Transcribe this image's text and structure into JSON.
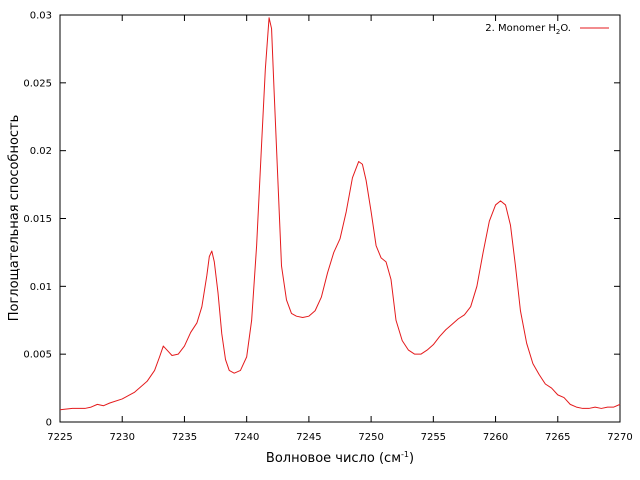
{
  "chart_data": {
    "type": "line",
    "xlabel": "Волновое число (см",
    "xlabel_sup": "-1",
    "xlabel_end": ")",
    "ylabel": "Поглощательная способность",
    "xlim": [
      7225,
      7270
    ],
    "ylim": [
      0,
      0.03
    ],
    "xticks": [
      "7225",
      "7230",
      "7235",
      "7240",
      "7245",
      "7250",
      "7255",
      "7260",
      "7265",
      "7270"
    ],
    "yticks": [
      "0",
      "0.005",
      "0.01",
      "0.015",
      "0.02",
      "0.025",
      "0.03"
    ],
    "grid": false,
    "legend_position": "top-right",
    "series": [
      {
        "name": "2. Monomer H",
        "name_sub": "2",
        "name_end": "O.",
        "color": "#e41a1c",
        "x": [
          7225,
          7226,
          7227,
          7227.5,
          7228,
          7228.5,
          7229,
          7230,
          7231,
          7232,
          7232.6,
          7233,
          7233.3,
          7233.7,
          7234,
          7234.5,
          7235,
          7235.5,
          7236,
          7236.4,
          7236.8,
          7237,
          7237.2,
          7237.4,
          7237.7,
          7238,
          7238.3,
          7238.6,
          7239,
          7239.5,
          7240,
          7240.4,
          7240.8,
          7241.2,
          7241.5,
          7241.8,
          7242,
          7242.2,
          7242.5,
          7242.8,
          7243.2,
          7243.6,
          7244,
          7244.5,
          7245,
          7245.5,
          7246,
          7246.5,
          7247,
          7247.5,
          7248,
          7248.5,
          7249,
          7249.3,
          7249.6,
          7250,
          7250.4,
          7250.8,
          7251.2,
          7251.6,
          7252,
          7252.5,
          7253,
          7253.5,
          7254,
          7254.5,
          7255,
          7255.5,
          7256,
          7256.5,
          7257,
          7257.5,
          7258,
          7258.5,
          7259,
          7259.5,
          7260,
          7260.4,
          7260.8,
          7261.2,
          7261.6,
          7262,
          7262.5,
          7263,
          7263.5,
          7264,
          7264.5,
          7265,
          7265.5,
          7266,
          7266.5,
          7267,
          7267.5,
          7268,
          7268.5,
          7269,
          7269.5,
          7270
        ],
        "y": [
          0.0009,
          0.001,
          0.001,
          0.0011,
          0.0013,
          0.0012,
          0.0014,
          0.0017,
          0.0022,
          0.003,
          0.0038,
          0.0048,
          0.0056,
          0.0052,
          0.0049,
          0.005,
          0.0056,
          0.0066,
          0.0073,
          0.0085,
          0.0108,
          0.0122,
          0.0126,
          0.0118,
          0.0095,
          0.0065,
          0.0046,
          0.0038,
          0.0036,
          0.0038,
          0.0048,
          0.0075,
          0.013,
          0.0205,
          0.026,
          0.0298,
          0.029,
          0.0245,
          0.018,
          0.0115,
          0.009,
          0.008,
          0.0078,
          0.0077,
          0.0078,
          0.0082,
          0.0092,
          0.011,
          0.0125,
          0.0135,
          0.0155,
          0.018,
          0.0192,
          0.019,
          0.0178,
          0.0155,
          0.013,
          0.0121,
          0.0118,
          0.0105,
          0.0075,
          0.006,
          0.0053,
          0.005,
          0.005,
          0.0053,
          0.0057,
          0.0063,
          0.0068,
          0.0072,
          0.0076,
          0.0079,
          0.0085,
          0.01,
          0.0125,
          0.0148,
          0.016,
          0.0163,
          0.016,
          0.0145,
          0.0115,
          0.0082,
          0.0058,
          0.0043,
          0.0035,
          0.0028,
          0.0025,
          0.002,
          0.0018,
          0.0013,
          0.0011,
          0.001,
          0.001,
          0.0011,
          0.001,
          0.0011,
          0.0011,
          0.0013
        ]
      }
    ]
  }
}
